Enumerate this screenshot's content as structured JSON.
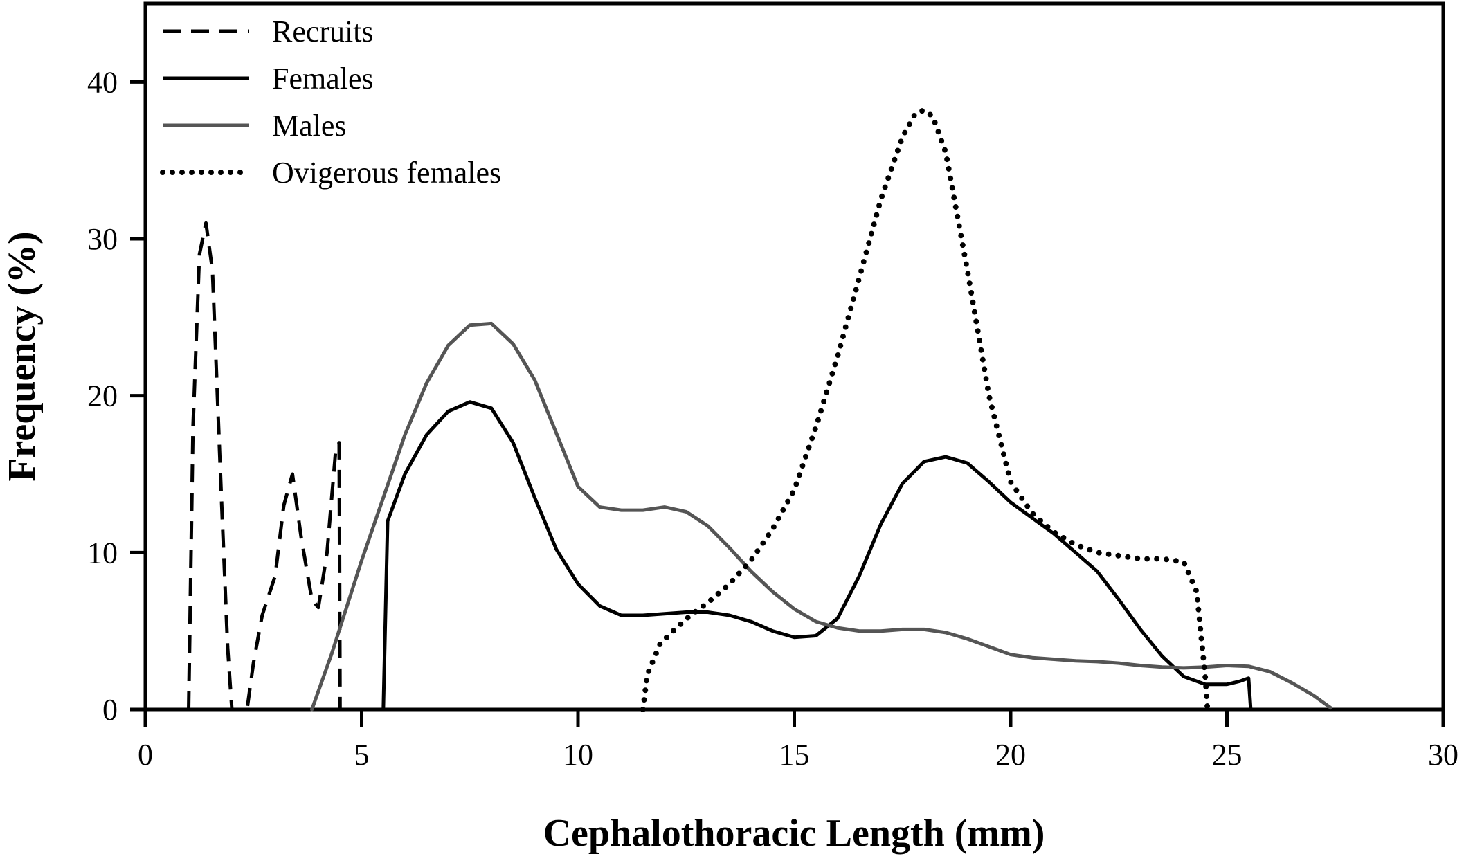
{
  "chart_data": {
    "type": "line",
    "title": "",
    "xlabel": "Cephalothoracic Length (mm)",
    "ylabel": "Frequency (%)",
    "xlim": [
      0,
      30
    ],
    "ylim": [
      0,
      45
    ],
    "xticks": [
      0,
      5,
      10,
      15,
      20,
      25,
      30
    ],
    "yticks": [
      0,
      10,
      20,
      30,
      40
    ],
    "grid": false,
    "legend_position": "top-left",
    "series": [
      {
        "name": "Recruits",
        "style": "dashed",
        "color": "#000000",
        "points": [
          [
            1.0,
            0
          ],
          [
            1.1,
            18
          ],
          [
            1.25,
            29
          ],
          [
            1.4,
            31
          ],
          [
            1.55,
            28
          ],
          [
            1.75,
            14
          ],
          [
            1.9,
            4
          ],
          [
            2.0,
            0
          ],
          [
            2.35,
            0
          ],
          [
            2.5,
            3
          ],
          [
            2.7,
            6
          ],
          [
            3.0,
            8.5
          ],
          [
            3.2,
            13
          ],
          [
            3.4,
            15
          ],
          [
            3.6,
            11
          ],
          [
            3.85,
            7
          ],
          [
            4.0,
            6.5
          ],
          [
            4.2,
            10
          ],
          [
            4.4,
            16.5
          ],
          [
            4.48,
            17
          ],
          [
            4.5,
            0
          ]
        ]
      },
      {
        "name": "Females",
        "style": "solid",
        "color": "#000000",
        "points": [
          [
            5.5,
            0
          ],
          [
            5.6,
            12
          ],
          [
            6.0,
            15
          ],
          [
            6.5,
            17.5
          ],
          [
            7.0,
            19
          ],
          [
            7.5,
            19.6
          ],
          [
            8.0,
            19.2
          ],
          [
            8.5,
            17
          ],
          [
            9.0,
            13.5
          ],
          [
            9.5,
            10.2
          ],
          [
            10.0,
            8
          ],
          [
            10.5,
            6.6
          ],
          [
            11.0,
            6
          ],
          [
            11.5,
            6
          ],
          [
            12.0,
            6.1
          ],
          [
            12.5,
            6.2
          ],
          [
            13.0,
            6.2
          ],
          [
            13.5,
            6
          ],
          [
            14.0,
            5.6
          ],
          [
            14.5,
            5
          ],
          [
            15.0,
            4.6
          ],
          [
            15.5,
            4.7
          ],
          [
            16.0,
            5.8
          ],
          [
            16.5,
            8.5
          ],
          [
            17.0,
            11.8
          ],
          [
            17.5,
            14.4
          ],
          [
            18.0,
            15.8
          ],
          [
            18.5,
            16.1
          ],
          [
            19.0,
            15.7
          ],
          [
            19.5,
            14.5
          ],
          [
            20.0,
            13.2
          ],
          [
            20.5,
            12.2
          ],
          [
            21.0,
            11.2
          ],
          [
            21.5,
            10
          ],
          [
            22.0,
            8.8
          ],
          [
            22.5,
            7
          ],
          [
            23.0,
            5.1
          ],
          [
            23.5,
            3.4
          ],
          [
            24.0,
            2.1
          ],
          [
            24.5,
            1.6
          ],
          [
            25.0,
            1.6
          ],
          [
            25.3,
            1.8
          ],
          [
            25.5,
            2.0
          ],
          [
            25.55,
            0
          ]
        ]
      },
      {
        "name": "Males",
        "style": "solid",
        "color": "#555555",
        "points": [
          [
            3.85,
            0
          ],
          [
            4.3,
            3.5
          ],
          [
            5.0,
            9.5
          ],
          [
            5.5,
            13.5
          ],
          [
            6.0,
            17.5
          ],
          [
            6.5,
            20.8
          ],
          [
            7.0,
            23.2
          ],
          [
            7.5,
            24.5
          ],
          [
            8.0,
            24.6
          ],
          [
            8.5,
            23.3
          ],
          [
            9.0,
            21
          ],
          [
            9.5,
            17.6
          ],
          [
            10.0,
            14.2
          ],
          [
            10.5,
            12.9
          ],
          [
            11.0,
            12.7
          ],
          [
            11.5,
            12.7
          ],
          [
            12.0,
            12.9
          ],
          [
            12.5,
            12.6
          ],
          [
            13.0,
            11.7
          ],
          [
            13.5,
            10.3
          ],
          [
            14.0,
            8.8
          ],
          [
            14.5,
            7.5
          ],
          [
            15.0,
            6.4
          ],
          [
            15.5,
            5.6
          ],
          [
            16.0,
            5.2
          ],
          [
            16.5,
            5
          ],
          [
            17.0,
            5
          ],
          [
            17.5,
            5.1
          ],
          [
            18.0,
            5.1
          ],
          [
            18.5,
            4.9
          ],
          [
            19.0,
            4.5
          ],
          [
            19.5,
            4
          ],
          [
            20.0,
            3.5
          ],
          [
            20.5,
            3.3
          ],
          [
            21.0,
            3.2
          ],
          [
            21.5,
            3.1
          ],
          [
            22.0,
            3.05
          ],
          [
            22.5,
            2.95
          ],
          [
            23.0,
            2.8
          ],
          [
            23.5,
            2.7
          ],
          [
            24.0,
            2.65
          ],
          [
            24.5,
            2.7
          ],
          [
            25.0,
            2.8
          ],
          [
            25.5,
            2.75
          ],
          [
            26.0,
            2.4
          ],
          [
            26.5,
            1.7
          ],
          [
            27.0,
            0.9
          ],
          [
            27.4,
            0.1
          ]
        ]
      },
      {
        "name": "Ovigerous females",
        "style": "dotted",
        "color": "#000000",
        "points": [
          [
            11.5,
            0
          ],
          [
            11.6,
            2.2
          ],
          [
            11.9,
            4.2
          ],
          [
            12.2,
            5
          ],
          [
            12.6,
            6
          ],
          [
            13.0,
            6.8
          ],
          [
            13.5,
            8
          ],
          [
            14.0,
            9.5
          ],
          [
            14.5,
            11.5
          ],
          [
            15.0,
            14
          ],
          [
            15.5,
            18
          ],
          [
            16.0,
            22.5
          ],
          [
            16.5,
            27.5
          ],
          [
            17.0,
            32.5
          ],
          [
            17.5,
            36.5
          ],
          [
            17.8,
            38
          ],
          [
            18.0,
            38.2
          ],
          [
            18.2,
            37.8
          ],
          [
            18.5,
            35.5
          ],
          [
            19.0,
            28
          ],
          [
            19.5,
            20
          ],
          [
            20.0,
            14.5
          ],
          [
            20.5,
            12.5
          ],
          [
            21.0,
            11.3
          ],
          [
            21.5,
            10.5
          ],
          [
            22.0,
            10
          ],
          [
            22.5,
            9.8
          ],
          [
            23.0,
            9.6
          ],
          [
            23.5,
            9.6
          ],
          [
            24.0,
            9.4
          ],
          [
            24.3,
            7.5
          ],
          [
            24.5,
            2
          ],
          [
            24.55,
            0
          ]
        ]
      }
    ]
  }
}
